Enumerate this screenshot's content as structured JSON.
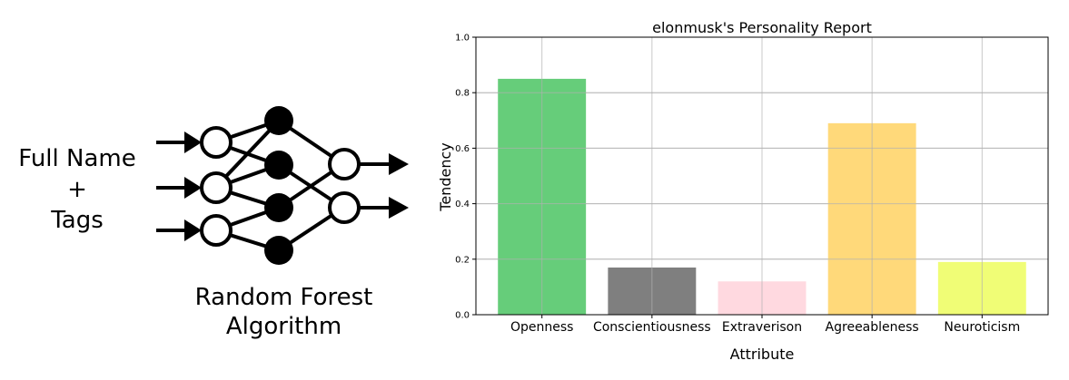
{
  "diagram": {
    "input_lines": [
      "Full Name",
      "+",
      "Tags"
    ],
    "algorithm_lines": [
      "Random Forest",
      "Algorithm"
    ]
  },
  "chart_data": {
    "type": "bar",
    "title": "elonmusk's Personality Report",
    "xlabel": "Attribute",
    "ylabel": "Tendency",
    "categories": [
      "Openness",
      "Conscientiousness",
      "Extraverison",
      "Agreeableness",
      "Neuroticism"
    ],
    "values": [
      0.85,
      0.17,
      0.12,
      0.69,
      0.19
    ],
    "colors": [
      "#66cd7a",
      "#7f7f7f",
      "#ffd9e0",
      "#ffd97a",
      "#f0fd76"
    ],
    "ylim": [
      0,
      1.0
    ],
    "yticks": [
      "0.0",
      "0.2",
      "0.4",
      "0.6",
      "0.8",
      "1.0"
    ],
    "grid": true
  }
}
